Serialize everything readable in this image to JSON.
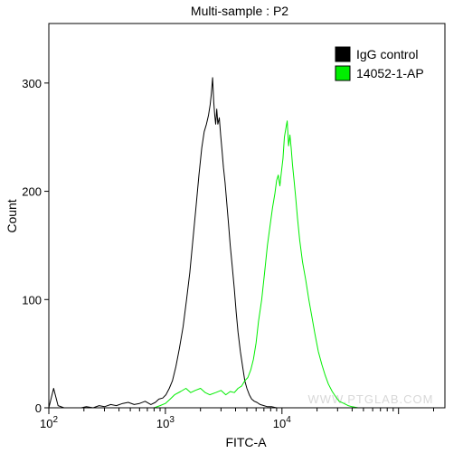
{
  "chart_data": {
    "type": "line",
    "title": "Multi-sample : P2",
    "xlabel": "FITC-A",
    "ylabel": "Count",
    "x_scale": "log",
    "xlim": [
      100,
      250000
    ],
    "ylim": [
      0,
      355
    ],
    "y_ticks": [
      0,
      100,
      200,
      300
    ],
    "x_ticks": [
      {
        "value": 100,
        "base": "10",
        "exp": "2"
      },
      {
        "value": 1000,
        "base": "10",
        "exp": "3"
      },
      {
        "value": 10000,
        "base": "10",
        "exp": "4"
      }
    ],
    "grid": false,
    "legend": "top-right",
    "watermark": "WWW.PTGLAB.COM",
    "series": [
      {
        "name": "IgG control",
        "color": "#000000",
        "x": [
          100,
          110,
          120,
          135,
          150,
          170,
          190,
          210,
          240,
          270,
          300,
          340,
          380,
          430,
          480,
          540,
          600,
          670,
          750,
          820,
          880,
          950,
          1010,
          1080,
          1150,
          1230,
          1320,
          1420,
          1520,
          1620,
          1720,
          1830,
          1940,
          2050,
          2150,
          2250,
          2340,
          2420,
          2480,
          2540,
          2600,
          2650,
          2700,
          2760,
          2820,
          2900,
          2980,
          3060,
          3150,
          3250,
          3360,
          3480,
          3600,
          3750,
          3900,
          4050,
          4200,
          4400,
          4600,
          4800,
          5000,
          5250,
          5500,
          5800,
          6100,
          6500,
          7000,
          7500,
          8200,
          9000,
          10000,
          12000,
          15000,
          20000,
          30000,
          50000
        ],
        "y": [
          0,
          18,
          2,
          0,
          0,
          0,
          0,
          1,
          0,
          2,
          1,
          3,
          2,
          4,
          5,
          3,
          4,
          6,
          3,
          5,
          8,
          9,
          12,
          18,
          25,
          38,
          55,
          75,
          100,
          125,
          155,
          185,
          215,
          240,
          255,
          262,
          270,
          280,
          290,
          305,
          282,
          270,
          262,
          276,
          262,
          268,
          252,
          238,
          222,
          208,
          190,
          170,
          150,
          130,
          110,
          88,
          70,
          52,
          38,
          25,
          18,
          12,
          8,
          6,
          5,
          3,
          2,
          1,
          1,
          0,
          0,
          0,
          0,
          0,
          0,
          0
        ]
      },
      {
        "name": "14052-1-AP",
        "color": "#00ee00",
        "x": [
          800,
          900,
          1000,
          1100,
          1200,
          1350,
          1500,
          1650,
          1800,
          2000,
          2200,
          2400,
          2700,
          3000,
          3300,
          3600,
          3900,
          4200,
          4500,
          4800,
          5100,
          5400,
          5700,
          6000,
          6300,
          6700,
          7100,
          7500,
          7900,
          8300,
          8700,
          9000,
          9300,
          9600,
          9900,
          10200,
          10500,
          10800,
          11100,
          11400,
          11700,
          12000,
          12300,
          12700,
          13100,
          13600,
          14200,
          15000,
          16000,
          17000,
          18000,
          19200,
          20500,
          22000,
          23500,
          25000,
          27000,
          29000,
          31000,
          34000,
          37000,
          40000,
          45000,
          50000
        ],
        "y": [
          0,
          2,
          4,
          8,
          12,
          15,
          18,
          14,
          16,
          18,
          14,
          12,
          14,
          16,
          12,
          15,
          14,
          18,
          20,
          25,
          28,
          35,
          45,
          60,
          80,
          100,
          125,
          150,
          168,
          185,
          198,
          210,
          215,
          205,
          218,
          230,
          250,
          258,
          265,
          242,
          252,
          240,
          225,
          210,
          195,
          175,
          155,
          135,
          118,
          100,
          85,
          68,
          52,
          40,
          30,
          22,
          15,
          10,
          6,
          4,
          2,
          1,
          0,
          0
        ]
      }
    ]
  }
}
